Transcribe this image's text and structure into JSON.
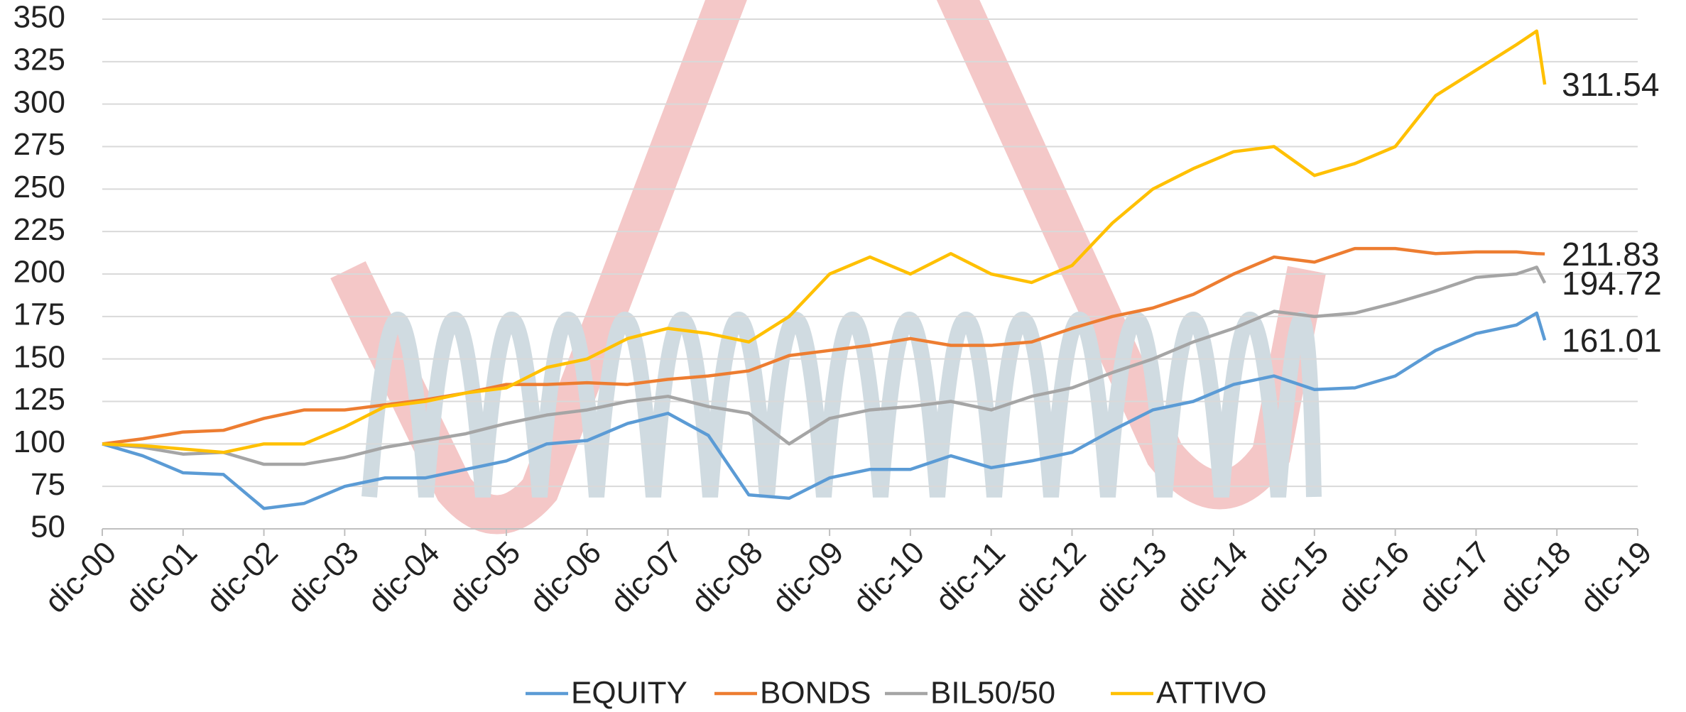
{
  "chart_data": {
    "type": "line",
    "x": [
      0,
      0.5,
      1,
      1.5,
      2,
      2.5,
      3,
      3.5,
      4,
      4.5,
      5,
      5.5,
      6,
      6.5,
      7,
      7.5,
      8,
      8.5,
      9,
      9.5,
      10,
      10.5,
      11,
      11.5,
      12,
      12.5,
      13,
      13.5,
      14,
      14.5,
      15,
      15.5,
      16,
      16.5,
      17,
      17.5,
      17.75,
      17.85
    ],
    "series": [
      {
        "name": "EQUITY",
        "color": "#5b9bd5",
        "values": [
          100,
          93,
          83,
          82,
          62,
          65,
          75,
          80,
          80,
          85,
          90,
          100,
          102,
          112,
          118,
          105,
          70,
          68,
          80,
          85,
          85,
          93,
          86,
          90,
          95,
          108,
          120,
          125,
          135,
          140,
          132,
          133,
          140,
          155,
          165,
          170,
          177,
          161.01
        ]
      },
      {
        "name": "BONDS",
        "color": "#ed7d31",
        "values": [
          100,
          103,
          107,
          108,
          115,
          120,
          120,
          123,
          126,
          130,
          135,
          135,
          136,
          135,
          138,
          140,
          143,
          152,
          155,
          158,
          162,
          158,
          158,
          160,
          168,
          175,
          180,
          188,
          200,
          210,
          207,
          215,
          215,
          212,
          213,
          213,
          212,
          211.83
        ]
      },
      {
        "name": "BIL50/50",
        "color": "#a5a5a5",
        "values": [
          100,
          98,
          94,
          95,
          88,
          88,
          92,
          98,
          102,
          106,
          112,
          117,
          120,
          125,
          128,
          122,
          118,
          100,
          115,
          120,
          122,
          125,
          120,
          128,
          133,
          142,
          150,
          160,
          168,
          178,
          175,
          177,
          183,
          190,
          198,
          200,
          204,
          194.72
        ]
      },
      {
        "name": "ATTIVO",
        "color": "#ffc000",
        "values": [
          100,
          99,
          97,
          95,
          100,
          100,
          110,
          122,
          125,
          130,
          133,
          145,
          150,
          162,
          168,
          165,
          160,
          175,
          200,
          210,
          200,
          212,
          200,
          195,
          205,
          230,
          250,
          262,
          272,
          275,
          258,
          265,
          275,
          305,
          320,
          335,
          343,
          311.54
        ]
      }
    ],
    "xlim": [
      0,
      19
    ],
    "xticks": [
      {
        "value": 0,
        "label": "dic-00"
      },
      {
        "value": 1,
        "label": "dic-01"
      },
      {
        "value": 2,
        "label": "dic-02"
      },
      {
        "value": 3,
        "label": "dic-03"
      },
      {
        "value": 4,
        "label": "dic-04"
      },
      {
        "value": 5,
        "label": "dic-05"
      },
      {
        "value": 6,
        "label": "dic-06"
      },
      {
        "value": 7,
        "label": "dic-07"
      },
      {
        "value": 8,
        "label": "dic-08"
      },
      {
        "value": 9,
        "label": "dic-09"
      },
      {
        "value": 10,
        "label": "dic-10"
      },
      {
        "value": 11,
        "label": "dic-11"
      },
      {
        "value": 12,
        "label": "dic-12"
      },
      {
        "value": 13,
        "label": "dic-13"
      },
      {
        "value": 14,
        "label": "dic-14"
      },
      {
        "value": 15,
        "label": "dic-15"
      },
      {
        "value": 16,
        "label": "dic-16"
      },
      {
        "value": 17,
        "label": "dic-17"
      },
      {
        "value": 18,
        "label": "dic-18"
      },
      {
        "value": 19,
        "label": "dic-19"
      }
    ],
    "ylim": [
      50,
      350
    ],
    "yticks": [
      50,
      75,
      100,
      125,
      150,
      175,
      200,
      225,
      250,
      275,
      300,
      325,
      350
    ],
    "grid": true,
    "legend": "bottom"
  }
}
